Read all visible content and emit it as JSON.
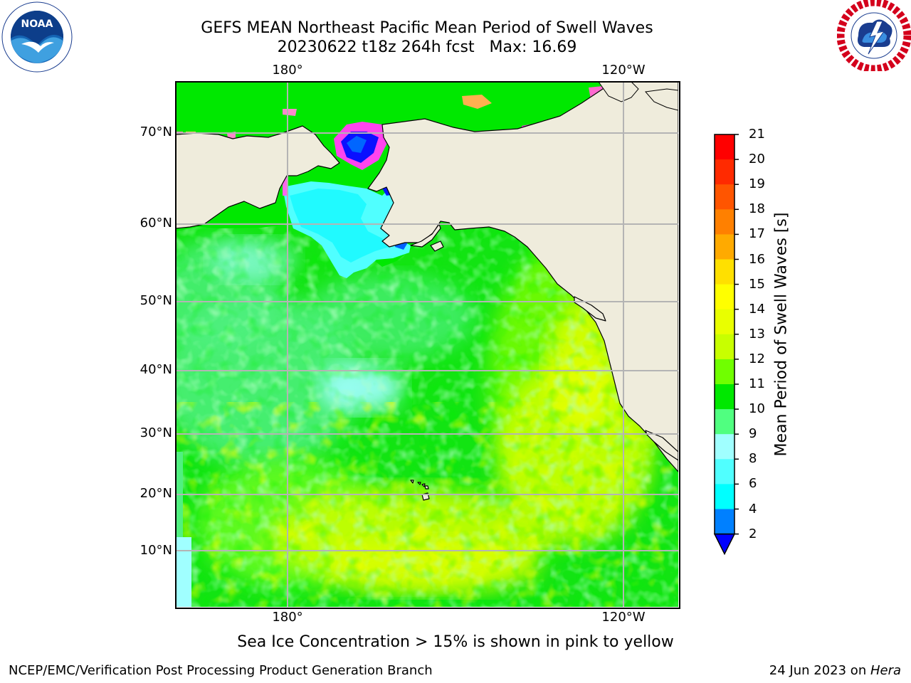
{
  "title": {
    "line1": "GEFS MEAN Northeast Pacific Mean Period of Swell Waves",
    "line2": "20230622 t18z 264h fcst   Max: 16.69"
  },
  "logos": {
    "left": "noaa-logo",
    "right": "national-weather-service-logo"
  },
  "map": {
    "lon_labels_top": [
      "180°",
      "120°W"
    ],
    "lon_labels_bottom": [
      "180°",
      "120°W"
    ],
    "lat_labels": [
      "70°N",
      "60°N",
      "50°N",
      "40°N",
      "30°N",
      "20°N",
      "10°N"
    ],
    "land_color": "#efecdc",
    "grid_color": "#b4b4b4"
  },
  "colorbar": {
    "title": "Mean Period of Swell Waves [s]",
    "ticks": [
      "21",
      "20",
      "19",
      "18",
      "17",
      "16",
      "15",
      "14",
      "13",
      "12",
      "11",
      "10",
      "9",
      "8",
      "6",
      "4",
      "2"
    ],
    "colors": [
      "#ff0000",
      "#ff2a00",
      "#ff5500",
      "#ff8000",
      "#ffaa00",
      "#ffd400",
      "#ffff00",
      "#e9ff00",
      "#c8ff00",
      "#80ff00",
      "#00ff00",
      "#00e000",
      "#50ff80",
      "#a0ffff",
      "#50ffff",
      "#00ffff",
      "#00b4ff",
      "#0080ff",
      "#0000ff"
    ]
  },
  "footer": {
    "ice_note": "Sea Ice Concentration > 15% is shown in pink to yellow",
    "credit": "NCEP/EMC/Verification Post Processing Product Generation Branch",
    "date": "24 Jun 2023 on ",
    "machine": "Hera"
  }
}
